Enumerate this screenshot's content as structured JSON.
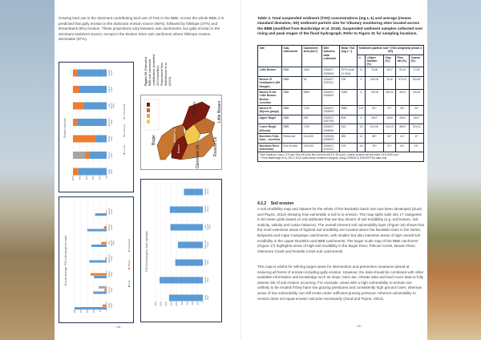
{
  "left_page": {
    "intro": "Grazing land use is the dominant contributing land use of TSS in the BBB. Across the whole BBB, it is predicted that gully erosion is the dominant erosion source (65%), followed by hillslope (27%) and streambank (8%) erosion. These proportions vary between sub catchments, but gully erosion is the dominant sediment source, except in the Broken River sub catchment where hillslope erosion dominates (67%).",
    "figure_caption_label": "Figure 15.",
    "figure_caption": "Estimated BBB sub catchment contributions (modelled 2013 baseline). Reproduced from Waterhouse et al. (2016).",
    "map_labels": [
      "Bogie",
      "Pelican Ck",
      "Bowen",
      "Broken",
      "Little Bowen",
      "Rosella Ck",
      "Glenmore Ck"
    ],
    "page_number": "- 28 -"
  },
  "chart_data": [
    {
      "type": "bar",
      "stacked": "percent",
      "title": "Erosion sources",
      "categories": [
        "Bogie River",
        "Bowen River",
        "Broken River",
        "Glenmore Creek",
        "Little Bowen River",
        "Pelican Creek",
        "Rosella Creek"
      ],
      "yticks": [
        "0%",
        "20%",
        "40%",
        "60%",
        "80%",
        "100%"
      ],
      "ylim": [
        0,
        100
      ],
      "series": [
        {
          "name": "% Gully",
          "color": "#5b9bd5",
          "values": [
            84,
            52,
            33,
            88,
            68,
            82,
            88
          ]
        },
        {
          "name": "% Hillslope",
          "color": "#ed7d31",
          "values": [
            16,
            12,
            67,
            12,
            32,
            18,
            12
          ]
        },
        {
          "name": "% Streambank",
          "color": "#a5a5a5",
          "values": [
            0,
            36,
            0,
            0,
            0,
            0,
            0
          ]
        }
      ],
      "legend": "bottom"
    },
    {
      "type": "bar",
      "title": "Annual average TSS anthropogenic loads",
      "categories": [
        "Bogie River",
        "Bowen River",
        "Broken River",
        "Glenmore Creek",
        "Little Bowen River",
        "Pelican Creek",
        "Rosella Creek"
      ],
      "yticks": [
        "0",
        "50",
        "100",
        "150",
        "200",
        "250"
      ],
      "ylim": [
        0,
        250
      ],
      "series": [
        {
          "name": "Gully",
          "color": "#5b9bd5",
          "values": [
            250,
            104,
            98,
            135,
            119,
            150,
            90
          ]
        },
        {
          "name": "Hillslope",
          "color": "#ed7d31",
          "values": [
            31,
            17,
            125,
            10,
            42,
            21,
            6
          ]
        },
        {
          "name": "Streambank",
          "color": "#a5a5a5",
          "values": [
            5,
            62,
            5,
            2,
            3,
            3,
            2
          ]
        }
      ],
      "legend": "bottom"
    },
    {
      "type": "bar",
      "ylabel": "TSS Anthropogenic load (kg/ha/yr)",
      "categories": [
        "Bogie River",
        "Bowen River",
        "Broken River",
        "Glenmore Creek",
        "Little Bowen River",
        "Pelican Creek",
        "Rosella Creek"
      ],
      "yticks": [
        "0",
        "200",
        "400",
        "600",
        "800",
        "1000",
        "1200",
        "1400",
        "1600",
        "1800"
      ],
      "ylim": [
        0,
        1800
      ],
      "series": [
        {
          "color": "#5b9bd5",
          "values": [
            1286,
            1646,
            1049,
            946,
            1234,
            1255,
            720
          ]
        }
      ]
    }
  ],
  "right_page": {
    "table_caption": "Table 3. Total suspended sediment (TSS) concentrations (mg L-1) and average (mean± standard deviation, SD) sediment particle size for tributary monitoring sites located across the BBB (modified from Bainbridge et al. 2016). Suspended sediment samples collected over rising and peak stages of the flood hydrograph. Refer to Figure 31 for sampling locations.",
    "headers": [
      "Site",
      "Sub-catchment",
      "Catchment Area (km²)",
      "Wet seasons data collected",
      "Mean TSS (mg L⁻¹)",
      "Sediment particle size* (TSS weighted) (mean ± SD)"
    ],
    "subheaders": [
      "n",
      "<10µm fraction (%)",
      "Clay (%)",
      "Fine silt (%)",
      "Coarse (%)"
    ],
    "rows": [
      [
        "Little Bowen",
        "BBB",
        "1490",
        "2006/07-2008/09",
        "3270 (max 11,900)",
        "11",
        "72±8",
        "32±7",
        "51±9",
        "17±8"
      ],
      [
        "Broken R headwaters (Mt Dangar)",
        "BBB",
        "35",
        "2006/07, 2010/11",
        "135",
        "3",
        "33±15",
        "11±5",
        "37±10",
        "52±15"
      ],
      [
        "Bowen R d/s Little Bowen-Broken Junction",
        "BBB",
        "3690",
        "2006/07-2008/09",
        "2055",
        "6",
        "75±16",
        "36±11",
        "49±4",
        "15±15"
      ],
      [
        "Bowen R (Myuna gauge)",
        "BBB",
        "7110",
        "2006/07-2008/09",
        "2880",
        "110",
        "63^",
        "27^",
        "49^",
        "24^"
      ],
      [
        "Upper Bogie",
        "BBB",
        "255",
        "2006/07-2007/08",
        "805",
        "5",
        "49±7",
        "15±6",
        "43±2",
        "42±7"
      ],
      [
        "Lower Bogie (Kilcola)",
        "BBB",
        "1700",
        "2006/07-2008/09",
        "510",
        "15",
        "61±16",
        "31±13",
        "48±9",
        "21±13"
      ],
      [
        "Burdekin Falls Dam – overflow",
        "Reservoir",
        "114,600",
        "2005/06-2008/09",
        "380",
        "10",
        "86^",
        "52^",
        "41^",
        "6^"
      ],
      [
        "Burdekin River (Inkerman)",
        "End of river",
        "129,000",
        "2006/07-2010/11",
        "375",
        "16",
        "75^",
        "37^",
        "44^",
        "19^"
      ]
    ],
    "footnote_1": "*Size fractions: clay (<3.9 µm); fine silt (very fine and fine silt 3.9-15.6 µm); coarse (coarse silt and sand 15.6-2000 µm)",
    "footnote_2": "^ From Bainbridge et al. 2014, 2016 loads based sediment budgets, using 2005/06 to 2008/09 PSA data only",
    "section_number": "4.2.2",
    "section_title": "Soil erosion",
    "para_1": "A soil erodibility map and dataset for the whole of the Burdekin basin has now been developed (Zund and Payne, 2014) showing how vulnerable a soil is to erosion. The map splits soils into 17 categories in 80 metre grids based on soil attributes that are key drivers of soil erodibility (e.g. soil texture, soil sodicity, salinity and cation balance). The overall inherent soil vulnerability layer (Figure 16) shows that the most extensive areas of highest soil erodibility are located above the Burdekin Dam in the Suttor, Belyando and Cape Campaspe catchments, with smaller but also intensive areas of high overall soil erodibility in the Upper Burdekin and BBB catchments. The larger scale map of the BBB catchment (Figure 17) highlights areas of high soil erodibility in the Bogie River, Pelican Creek, Bowen River, Glenmore Creek and Rosella Creek sub catchments.",
    "para_2": "This map is useful for refining target areas for intervention and prevention measures aimed at reducing all forms of erosion including gully erosion. However, the data should be combined with other available information and knowledge such as slope, land use, climate data and land cover data to fully assess risk of soil erosion occurring. For example, areas with a high vulnerability to erosion are unlikely to be eroded if they have low grazing pressures and consistently high ground cover, whereas areas of low vulnerability can still erode under sufficient grazing pressure. Inherent vulnerability to erosion does not equal erosion outcome necessarily (Zund and Payne, 2014).",
    "page_number": "- 29 -"
  }
}
